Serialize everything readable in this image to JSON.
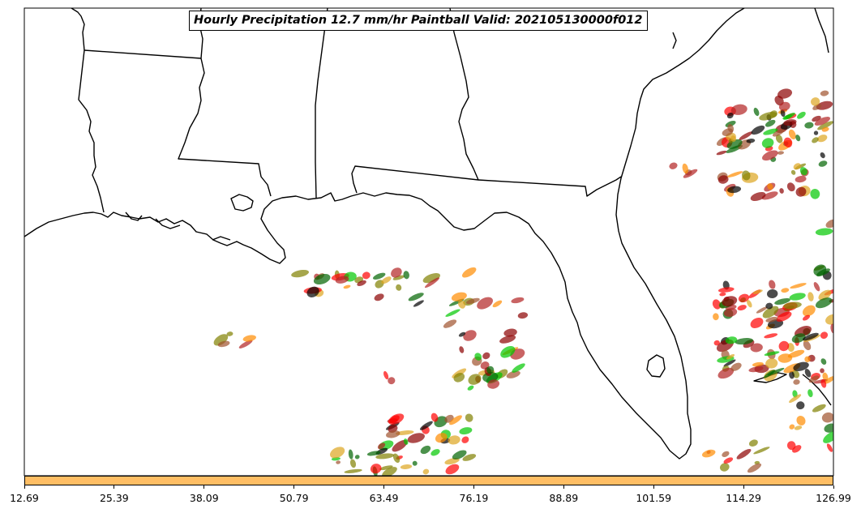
{
  "title": "Hourly Precipitation 12.7 mm/hr Paintball Valid: 202105130000f012",
  "colorbar": {
    "color": "#ffbe64",
    "ticks": [
      "12.69",
      "25.39",
      "38.09",
      "50.79",
      "63.49",
      "76.19",
      "88.89",
      "101.59",
      "114.29",
      "126.99"
    ]
  },
  "member_colors": [
    "#8b0000",
    "#ff0000",
    "#ff8c00",
    "#808000",
    "#00c800",
    "#006400",
    "#000000",
    "#b22222",
    "#dda520",
    "#a0522d"
  ]
}
